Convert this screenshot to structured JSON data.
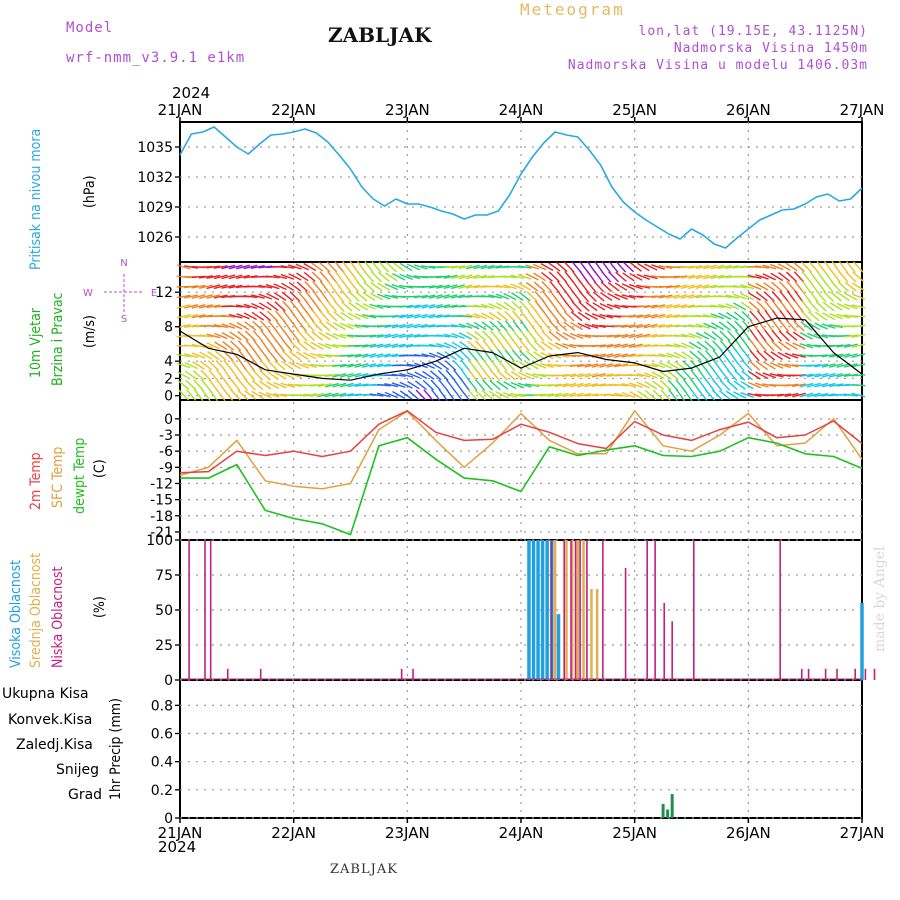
{
  "header": {
    "model_label": "Model",
    "model_name": "wrf-nmm_v3.9.1  e1km",
    "station": "ZABLJAK",
    "chart_kind": "Meteogram",
    "lonlat": "lon,lat (19.15E, 43.1125N)",
    "elevation": "Nadmorska Visina 1450m",
    "model_elevation": "Nadmorska Visina u modelu 1406.03m",
    "year_top": "2024",
    "year_bottom": "2024",
    "footer": "ZABLJAK",
    "credit": "made by Angel"
  },
  "colors": {
    "pressure": "#2aa8e0",
    "temp2m": "#e84040",
    "sfc": "#e0a040",
    "dew": "#20c020",
    "high_cloud": "#20a0e0",
    "mid_cloud": "#e0b050",
    "low_cloud": "#c02080",
    "precip": "#209050"
  },
  "panel_labels": {
    "pressure": [
      "Pritisak na nivou mora",
      "(hPa)"
    ],
    "wind": [
      "10m Vjetar",
      "Brzina i Pravac",
      "(m/s)"
    ],
    "wind_compass": {
      "n": "N",
      "s": "S",
      "w": "W",
      "e": "E"
    },
    "temp": [
      "2m Temp",
      "SFC Temp",
      "dewpt Temp",
      "(C)"
    ],
    "cloud": [
      "Visoka Oblacnost",
      "Srednja Oblacnost",
      "Niska Oblacnost",
      "(%)"
    ],
    "precip_unit": "1hr Precip (mm)",
    "precip_legend": [
      "Ukupna Kisa",
      "Konvek.Kisa",
      "Zaledj.Kisa",
      "Snijeg",
      "Grad"
    ],
    "precip_legend_colors": [
      "#30b030",
      "#e04040",
      "#f07830",
      "#4040d0",
      "#30c0c0"
    ]
  },
  "chart_data": {
    "type": "line",
    "x_labels": [
      "21JAN",
      "22JAN",
      "23JAN",
      "24JAN",
      "25JAN",
      "26JAN",
      "27JAN"
    ],
    "panels": [
      {
        "name": "pressure",
        "yticks": [
          1026,
          1029,
          1032,
          1035
        ],
        "ylim": [
          1023.5,
          1037.5
        ],
        "series": [
          {
            "name": "Pritisak na nivou mora",
            "x": [
              0,
              0.1,
              0.2,
              0.3,
              0.4,
              0.5,
              0.6,
              0.7,
              0.8,
              0.9,
              1.0,
              1.1,
              1.2,
              1.3,
              1.4,
              1.5,
              1.6,
              1.7,
              1.8,
              1.9,
              2.0,
              2.1,
              2.2,
              2.3,
              2.4,
              2.5,
              2.6,
              2.7,
              2.8,
              2.9,
              3.0,
              3.1,
              3.2,
              3.3,
              3.4,
              3.5,
              3.6,
              3.7,
              3.8,
              3.9,
              4.0,
              4.1,
              4.2,
              4.3,
              4.4,
              4.5,
              4.6,
              4.7,
              4.8,
              4.9,
              5.0,
              5.1,
              5.2,
              5.3,
              5.4,
              5.5,
              5.6,
              5.7,
              5.8,
              5.9,
              6.0
            ],
            "y": [
              1034.2,
              1036.3,
              1036.5,
              1037.0,
              1036.0,
              1035.0,
              1034.3,
              1035.3,
              1036.2,
              1036.3,
              1036.5,
              1036.8,
              1036.4,
              1035.5,
              1034.2,
              1032.8,
              1031.0,
              1029.8,
              1029.1,
              1029.8,
              1029.3,
              1029.3,
              1029.0,
              1028.6,
              1028.3,
              1027.8,
              1028.2,
              1028.2,
              1028.6,
              1030.2,
              1032.3,
              1034.0,
              1035.4,
              1036.5,
              1036.2,
              1036.0,
              1034.7,
              1033.2,
              1031.0,
              1029.5,
              1028.5,
              1027.7,
              1027.0,
              1026.3,
              1025.8,
              1026.8,
              1026.2,
              1025.3,
              1024.9,
              1025.9,
              1026.8,
              1027.7,
              1028.2,
              1028.7,
              1028.8,
              1029.3,
              1030.0,
              1030.3,
              1029.6,
              1029.8,
              1030.9
            ]
          }
        ]
      },
      {
        "name": "wind",
        "yticks": [
          0,
          2,
          4,
          8,
          12
        ],
        "ylim": [
          -0.5,
          15.5
        ],
        "series": [
          {
            "name": "10m Vjetar",
            "x": [
              0,
              0.25,
              0.5,
              0.75,
              1.0,
              1.25,
              1.5,
              1.75,
              2.0,
              2.25,
              2.5,
              2.75,
              3.0,
              3.25,
              3.5,
              3.75,
              4.0,
              4.25,
              4.5,
              4.75,
              5.0,
              5.25,
              5.5,
              5.75,
              6.0
            ],
            "y": [
              7.5,
              5.5,
              4.8,
              3.0,
              2.5,
              2.0,
              1.8,
              2.5,
              3.0,
              4.0,
              5.5,
              5.0,
              3.2,
              4.6,
              5.0,
              4.2,
              3.8,
              2.8,
              3.2,
              4.5,
              8.0,
              9.0,
              8.8,
              5.0,
              2.5
            ]
          }
        ]
      },
      {
        "name": "temperature",
        "yticks": [
          0,
          -3,
          -6,
          -9,
          -12,
          -15,
          -18,
          -21
        ],
        "ylim": [
          -22.5,
          3.5
        ],
        "series": [
          {
            "name": "2m Temp",
            "x": [
              0,
              0.25,
              0.5,
              0.75,
              1.0,
              1.25,
              1.5,
              1.75,
              2.0,
              2.25,
              2.5,
              2.75,
              3.0,
              3.25,
              3.5,
              3.75,
              4.0,
              4.25,
              4.5,
              4.75,
              5.0,
              5.25,
              5.5,
              5.75,
              6.0
            ],
            "y": [
              -10.0,
              -9.8,
              -6.0,
              -6.8,
              -6.0,
              -7.0,
              -6.0,
              -1.0,
              1.5,
              -2.5,
              -4.0,
              -3.8,
              -1.0,
              -2.5,
              -4.6,
              -5.5,
              -0.5,
              -3.0,
              -4.0,
              -2.0,
              -0.6,
              -3.5,
              -3.0,
              -0.4,
              -4.6
            ]
          },
          {
            "name": "SFC Temp",
            "x": [
              0,
              0.25,
              0.5,
              0.75,
              1.0,
              1.25,
              1.5,
              1.75,
              2.0,
              2.25,
              2.5,
              2.75,
              3.0,
              3.25,
              3.5,
              3.75,
              4.0,
              4.25,
              4.5,
              4.75,
              5.0,
              5.25,
              5.5,
              5.75,
              6.0
            ],
            "y": [
              -10.5,
              -9.0,
              -4.0,
              -11.5,
              -12.5,
              -13.0,
              -12.0,
              -2.0,
              1.4,
              -4.0,
              -9.0,
              -4.5,
              1.0,
              -4.0,
              -6.5,
              -6.5,
              1.5,
              -5.0,
              -6.0,
              -3.0,
              1.0,
              -5.0,
              -4.5,
              0.0,
              -7.5
            ]
          },
          {
            "name": "dewpt Temp",
            "x": [
              0,
              0.25,
              0.5,
              0.75,
              1.0,
              1.25,
              1.5,
              1.75,
              2.0,
              2.25,
              2.5,
              2.75,
              3.0,
              3.25,
              3.5,
              3.75,
              4.0,
              4.25,
              4.5,
              4.75,
              5.0,
              5.25,
              5.5,
              5.75,
              6.0
            ],
            "y": [
              -11.0,
              -11.0,
              -8.5,
              -17.0,
              -18.5,
              -19.5,
              -21.5,
              -5.0,
              -3.5,
              -7.5,
              -11.0,
              -11.5,
              -13.5,
              -5.2,
              -6.8,
              -5.8,
              -5.0,
              -6.8,
              -7.0,
              -6.0,
              -3.5,
              -4.5,
              -6.5,
              -7.0,
              -9.2
            ]
          }
        ]
      },
      {
        "name": "cloud",
        "yticks": [
          0,
          25,
          50,
          75,
          100
        ],
        "ylim": [
          0,
          100
        ],
        "series": [
          {
            "name": "Visoka Oblacnost",
            "x": [
              3.07,
              3.11,
              3.15,
              3.19,
              3.23,
              3.27,
              3.33,
              6.0
            ],
            "y": [
              100,
              100,
              100,
              100,
              100,
              100,
              47,
              55
            ]
          },
          {
            "name": "Srednja Oblacnost",
            "x": [
              3.3,
              3.4,
              3.45,
              3.5,
              3.55,
              3.62,
              3.67
            ],
            "y": [
              100,
              100,
              100,
              100,
              100,
              65,
              65
            ]
          },
          {
            "name": "Niska Oblacnost",
            "x": [
              0.08,
              0.22,
              0.27,
              0.42,
              0.71,
              1.95,
              2.05,
              3.27,
              3.38,
              3.44,
              3.48,
              3.52,
              3.58,
              3.72,
              3.92,
              4.11,
              4.18,
              4.26,
              4.33,
              4.52,
              5.28,
              5.47,
              5.53,
              5.68,
              5.78,
              5.94,
              6.03,
              6.11,
              6.41
            ],
            "y": [
              100,
              100,
              100,
              8,
              8,
              8,
              8,
              100,
              100,
              100,
              100,
              100,
              100,
              100,
              80,
              100,
              100,
              55,
              42,
              100,
              100,
              8,
              8,
              8,
              8,
              8,
              8,
              8,
              8
            ]
          }
        ]
      },
      {
        "name": "precip",
        "yticks": [
          0,
          0.2,
          0.4,
          0.6,
          0.8
        ],
        "ylim": [
          0,
          0.98
        ],
        "series": [
          {
            "name": "Ukupna Kisa",
            "x": [
              4.25,
              4.29,
              4.33
            ],
            "y": [
              0.1,
              0.06,
              0.17
            ]
          }
        ]
      }
    ]
  }
}
